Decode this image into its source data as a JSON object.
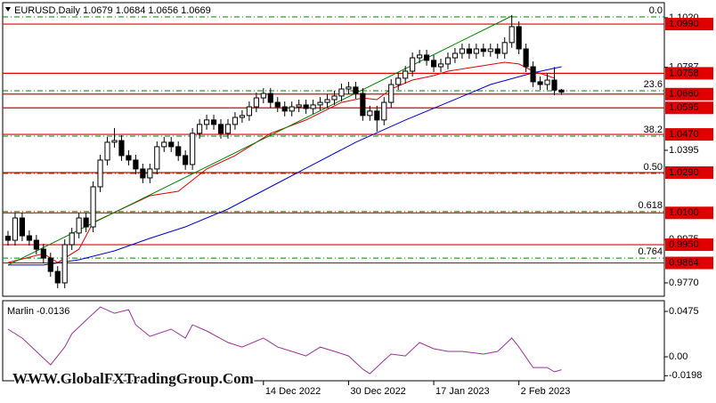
{
  "watermark": "WWW.GlobalFXTradingGroup.Com",
  "chart_data": [
    {
      "type": "candlestick",
      "title": "EURUSD,Daily  1.0679 1.0684 1.0656 1.0669",
      "xlim": [
        -0.75,
        92.5
      ],
      "ylim": [
        0.9707,
        1.1091
      ],
      "yticks": [
        {
          "value": 1.102,
          "label": "1.1020"
        },
        {
          "value": 1.0787,
          "label": "1.0787"
        },
        1.0395,
        {
          "value": 0.9975,
          "label": "0.9975"
        },
        {
          "value": 0.977,
          "label": "0.9770"
        }
      ],
      "bull_color": "#ffffff",
      "bear_color": "#000000",
      "ohlc": [
        [
          0.999,
          1.0015,
          0.9946,
          0.9971
        ],
        [
          0.9971,
          1.0101,
          0.9946,
          1.0076
        ],
        [
          1.0076,
          1.0101,
          0.9967,
          0.9992
        ],
        [
          0.9992,
          1.0017,
          0.9946,
          0.9971
        ],
        [
          0.9971,
          0.9996,
          0.9904,
          0.9929
        ],
        [
          0.9929,
          0.9954,
          0.9862,
          0.9887
        ],
        [
          0.9887,
          0.9912,
          0.9799,
          0.9824
        ],
        [
          0.9824,
          0.9849,
          0.9745,
          0.977
        ],
        [
          0.977,
          0.9975,
          0.9745,
          0.995
        ],
        [
          0.995,
          1.003,
          0.9925,
          1.0005
        ],
        [
          1.0005,
          1.0101,
          0.998,
          1.0076
        ],
        [
          1.0076,
          1.0101,
          1.0009,
          1.0034
        ],
        [
          1.0034,
          1.0248,
          1.0009,
          1.0223
        ],
        [
          1.0223,
          1.0374,
          1.0198,
          1.0349
        ],
        [
          1.0349,
          1.0458,
          1.0324,
          1.0433
        ],
        [
          1.0433,
          1.05,
          1.0408,
          1.0441
        ],
        [
          1.0441,
          1.0466,
          1.0345,
          1.037
        ],
        [
          1.037,
          1.0395,
          1.0324,
          1.0349
        ],
        [
          1.0349,
          1.0374,
          1.0282,
          1.0307
        ],
        [
          1.0307,
          1.0332,
          1.024,
          1.0265
        ],
        [
          1.0265,
          1.0332,
          1.024,
          1.0307
        ],
        [
          1.0307,
          1.0437,
          1.0282,
          1.0412
        ],
        [
          1.0412,
          1.0458,
          1.0387,
          1.0433
        ],
        [
          1.0433,
          1.0458,
          1.0387,
          1.0412
        ],
        [
          1.0412,
          1.0437,
          1.0345,
          1.037
        ],
        [
          1.037,
          1.0395,
          1.0303,
          1.0328
        ],
        [
          1.0328,
          1.05,
          1.0303,
          1.0475
        ],
        [
          1.0475,
          1.0542,
          1.045,
          1.0517
        ],
        [
          1.0517,
          1.0563,
          1.0492,
          1.0538
        ],
        [
          1.0538,
          1.0563,
          1.0492,
          1.0517
        ],
        [
          1.0517,
          1.0542,
          1.045,
          1.0475
        ],
        [
          1.0475,
          1.0542,
          1.045,
          1.0517
        ],
        [
          1.0517,
          1.0575,
          1.0492,
          1.055
        ],
        [
          1.055,
          1.0584,
          1.0525,
          1.0559
        ],
        [
          1.0559,
          1.0625,
          1.0534,
          1.06
        ],
        [
          1.06,
          1.0667,
          1.0575,
          1.0642
        ],
        [
          1.0642,
          1.0688,
          1.0617,
          1.0663
        ],
        [
          1.0663,
          1.0688,
          1.0596,
          1.0621
        ],
        [
          1.0621,
          1.0646,
          1.0575,
          1.06
        ],
        [
          1.06,
          1.0625,
          1.0555,
          1.058
        ],
        [
          1.058,
          1.0625,
          1.0555,
          1.06
        ],
        [
          1.06,
          1.0634,
          1.0575,
          1.0609
        ],
        [
          1.0609,
          1.0634,
          1.0567,
          1.0592
        ],
        [
          1.0592,
          1.0634,
          1.0567,
          1.0609
        ],
        [
          1.0609,
          1.0646,
          1.0584,
          1.0621
        ],
        [
          1.0621,
          1.0659,
          1.0596,
          1.0634
        ],
        [
          1.0634,
          1.0676,
          1.0609,
          1.0651
        ],
        [
          1.0651,
          1.0709,
          1.0626,
          1.0684
        ],
        [
          1.0684,
          1.0718,
          1.0659,
          1.0693
        ],
        [
          1.0693,
          1.0718,
          1.0638,
          1.0663
        ],
        [
          1.0663,
          1.0688,
          1.0534,
          1.0559
        ],
        [
          1.0559,
          1.0605,
          1.0534,
          1.058
        ],
        [
          1.058,
          1.0605,
          1.0483,
          1.0538
        ],
        [
          1.0538,
          1.0646,
          1.0513,
          1.0621
        ],
        [
          1.0621,
          1.073,
          1.0596,
          1.0705
        ],
        [
          1.0705,
          1.076,
          1.068,
          1.0735
        ],
        [
          1.0735,
          1.0793,
          1.071,
          1.0768
        ],
        [
          1.0768,
          1.0856,
          1.0743,
          1.0831
        ],
        [
          1.0831,
          1.0869,
          1.0806,
          1.0844
        ],
        [
          1.0844,
          1.0869,
          1.0794,
          1.0819
        ],
        [
          1.0819,
          1.0844,
          1.0764,
          1.0789
        ],
        [
          1.0789,
          1.0827,
          1.0764,
          1.0802
        ],
        [
          1.0802,
          1.0856,
          1.0777,
          1.0831
        ],
        [
          1.0831,
          1.0877,
          1.0806,
          1.0852
        ],
        [
          1.0852,
          1.0898,
          1.0827,
          1.0873
        ],
        [
          1.0873,
          1.0898,
          1.0827,
          1.0852
        ],
        [
          1.0852,
          1.0898,
          1.0827,
          1.0873
        ],
        [
          1.0873,
          1.0898,
          1.0836,
          1.0861
        ],
        [
          1.0861,
          1.0898,
          1.0836,
          1.0873
        ],
        [
          1.0873,
          1.0898,
          1.0827,
          1.0852
        ],
        [
          1.0852,
          1.0928,
          1.0827,
          1.0903
        ],
        [
          1.0903,
          1.1033,
          1.0878,
          1.0978
        ],
        [
          1.0978,
          1.1003,
          1.0848,
          1.0873
        ],
        [
          1.0873,
          1.0898,
          1.0764,
          1.0789
        ],
        [
          1.0789,
          1.0814,
          1.0693,
          1.0718
        ],
        [
          1.0718,
          1.0743,
          1.068,
          1.0705
        ],
        [
          1.0705,
          1.076,
          1.068,
          1.0726
        ],
        [
          1.0726,
          1.0787,
          1.0654,
          1.0679
        ],
        [
          1.0679,
          1.0684,
          1.0656,
          1.0669
        ]
      ],
      "series": [
        {
          "color": "#e00000",
          "x": [
            0,
            5,
            7,
            10,
            12,
            16,
            20,
            24,
            28,
            32,
            37,
            42,
            47,
            50,
            52,
            54,
            57,
            60,
            62,
            66,
            70,
            72,
            74,
            76,
            77
          ],
          "values": [
            0.9866,
            0.9908,
            0.9866,
            0.9929,
            1.0055,
            1.0118,
            1.0181,
            1.0202,
            1.0307,
            1.037,
            1.0475,
            1.0538,
            1.0621,
            1.0642,
            1.0634,
            1.0684,
            1.0726,
            1.0747,
            1.0768,
            1.0789,
            1.081,
            1.0802,
            1.0768,
            1.0747,
            1.0735
          ]
        },
        {
          "color": "#0000cc",
          "x": [
            0,
            5,
            10,
            15,
            20,
            25,
            31,
            37,
            43,
            49,
            56,
            62,
            68,
            74,
            78
          ],
          "values": [
            0.9854,
            0.9854,
            0.9879,
            0.9921,
            0.998,
            1.0034,
            1.0118,
            1.0223,
            1.0328,
            1.0433,
            1.0538,
            1.0621,
            1.0705,
            1.076,
            1.0789
          ]
        },
        {
          "color": "#008000",
          "x": [
            0,
            71
          ],
          "values": [
            0.9854,
            1.1028
          ]
        }
      ],
      "level_color": "#e00000",
      "levels": [
        {
          "value": 1.099,
          "label": "1.0990"
        },
        {
          "value": 1.0758,
          "label": "1.0758"
        },
        {
          "value": 1.066,
          "label": "1.0660"
        },
        {
          "value": 1.0595,
          "label": "1.0595"
        },
        {
          "value": 1.047,
          "label": "1.0470"
        },
        {
          "value": 1.029,
          "label": "1.0290"
        },
        {
          "value": 1.01,
          "label": "1.0100"
        },
        {
          "value": 0.995,
          "label": "0.9950"
        },
        {
          "value": 0.9864,
          "label": "0.9864"
        }
      ],
      "fib_color": "#008000",
      "fib": [
        {
          "value": 1.1024,
          "label": "0.0"
        },
        {
          "value": 1.0676,
          "label": "23.6"
        },
        {
          "value": 1.0462,
          "label": "38.2"
        },
        {
          "value": 1.0286,
          "label": "0.50"
        },
        {
          "value": 1.0106,
          "label": "0.618"
        },
        {
          "value": 0.9887,
          "label": "0.764"
        }
      ]
    },
    {
      "type": "line",
      "title": "Marlin -0.0136",
      "xlim": [
        -0.75,
        92.5
      ],
      "ylim": [
        -0.0251,
        0.0587
      ],
      "yticks": [
        0.0475,
        {
          "value": 0,
          "label": "0.00"
        },
        -0.0198
      ],
      "xticks": [
        {
          "value": 36,
          "label": "14 Dec 2022"
        },
        {
          "value": 48,
          "label": "30 Dec 2022"
        },
        {
          "value": 60,
          "label": "17 Jan 2023"
        },
        {
          "value": 72,
          "label": "2 Feb 2023"
        }
      ],
      "series": [
        {
          "color": "#993399",
          "x": [
            0,
            2,
            4,
            6,
            8,
            9,
            11,
            13,
            15,
            17,
            18,
            20,
            23,
            25,
            26,
            28,
            31,
            33,
            36,
            38,
            40,
            42,
            44,
            46,
            48,
            50,
            51,
            53,
            54,
            56,
            58,
            60,
            62,
            64,
            67,
            69,
            71,
            72,
            74,
            76,
            77,
            78
          ],
          "values": [
            0.0289,
            0.0196,
            0.0056,
            -0.0084,
            0.0102,
            0.0242,
            0.0382,
            0.0521,
            0.0456,
            0.0493,
            0.0335,
            0.0214,
            0.0289,
            0.0196,
            0.0335,
            0.027,
            0.0149,
            0.0102,
            0.0196,
            0.0102,
            0.0056,
            0.0009,
            0.0102,
            0.0056,
            0.0009,
            -0.013,
            -0.0177,
            -0.0037,
            0.0028,
            0.0009,
            0.0149,
            0.0084,
            0.0056,
            0.0056,
            0.0028,
            0.0056,
            0.0196,
            0.0102,
            -0.0112,
            -0.0112,
            -0.0158,
            -0.0136
          ]
        }
      ]
    }
  ]
}
